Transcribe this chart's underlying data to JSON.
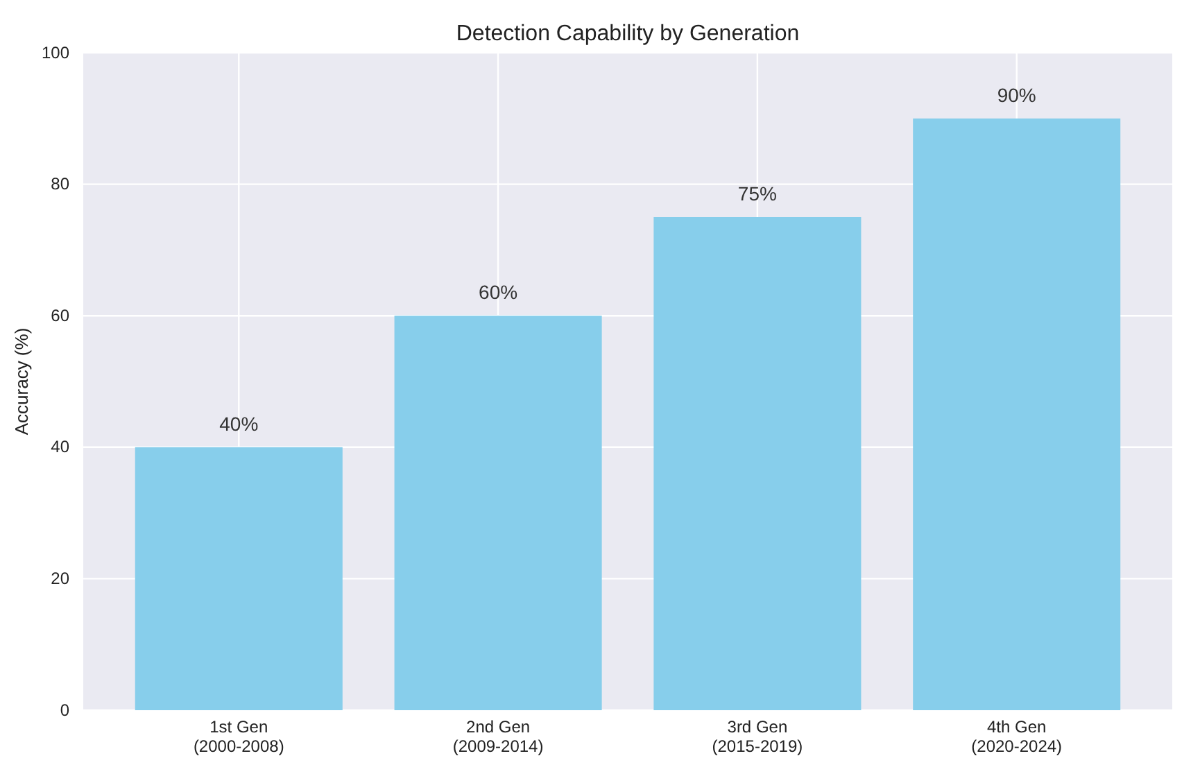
{
  "chart_data": {
    "type": "bar",
    "title": "Detection Capability by Generation",
    "ylabel": "Accuracy (%)",
    "categories": [
      "1st Gen\n(2000-2008)",
      "2nd Gen\n(2009-2014)",
      "3rd Gen\n(2015-2019)",
      "4th Gen\n(2020-2024)"
    ],
    "values": [
      40,
      60,
      75,
      90
    ],
    "value_labels": [
      "40%",
      "60%",
      "75%",
      "90%"
    ],
    "color": "#87ceeb",
    "ylim": [
      0,
      100
    ],
    "yticks": [
      0,
      20,
      40,
      60,
      80,
      100
    ],
    "grid": true
  }
}
